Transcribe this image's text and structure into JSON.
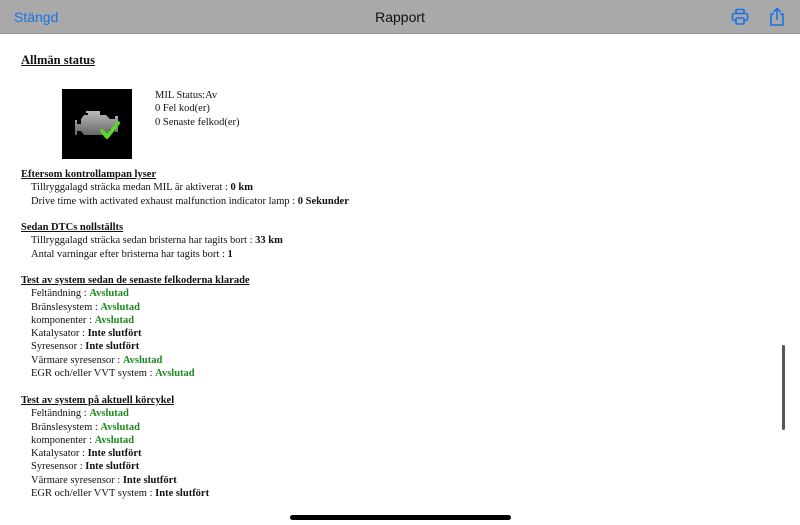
{
  "nav": {
    "close_label": "Stängd",
    "title": "Rapport",
    "print_icon": "printer-icon",
    "share_icon": "share-icon",
    "accent": "#1a73e8"
  },
  "general": {
    "title": "Allmän status",
    "icon": "engine-check-icon",
    "mil_status": "MIL Status:Av",
    "fault_codes": "0 Fel kod(er)",
    "recent_codes": "0 Senaste felkod(er)"
  },
  "mil_on": {
    "title": "Eftersom kontrollampan lyser",
    "items": [
      {
        "label": "Tillryggalagd sträcka medan MIL är aktiverat : ",
        "value": "0 km"
      },
      {
        "label": "Drive time with activated exhaust malfunction indicator lamp : ",
        "value": "0 Sekunder"
      }
    ]
  },
  "dtc_cleared": {
    "title": "Sedan DTCs nollställts",
    "items": [
      {
        "label": "Tillryggalagd sträcka sedan bristerna har tagits bort : ",
        "value": "33 km"
      },
      {
        "label": "Antal varningar efter bristerna har tagits bort : ",
        "value": "1"
      }
    ]
  },
  "test_since_clear": {
    "title": "Test av system sedan de senaste felkoderna klarade",
    "items": [
      {
        "label": "Feltändning : ",
        "value": "Avslutad",
        "status": "done"
      },
      {
        "label": "Bränslesystem : ",
        "value": "Avslutad",
        "status": "done"
      },
      {
        "label": "komponenter : ",
        "value": "Avslutad",
        "status": "done"
      },
      {
        "label": "Katalysator : ",
        "value": "Inte slutfört",
        "status": "incomplete"
      },
      {
        "label": "Syresensor : ",
        "value": "Inte slutfört",
        "status": "incomplete"
      },
      {
        "label": "Värmare syresensor : ",
        "value": "Avslutad",
        "status": "done"
      },
      {
        "label": "EGR och/eller VVT system : ",
        "value": "Avslutad",
        "status": "done"
      }
    ]
  },
  "test_current_cycle": {
    "title": "Test av system på aktuell körcykel",
    "items": [
      {
        "label": "Feltändning : ",
        "value": "Avslutad",
        "status": "done"
      },
      {
        "label": "Bränslesystem : ",
        "value": "Avslutad",
        "status": "done"
      },
      {
        "label": "komponenter : ",
        "value": "Avslutad",
        "status": "done"
      },
      {
        "label": "Katalysator : ",
        "value": "Inte slutfört",
        "status": "incomplete"
      },
      {
        "label": "Syresensor : ",
        "value": "Inte slutfört",
        "status": "incomplete"
      },
      {
        "label": "Värmare syresensor : ",
        "value": "Inte slutfört",
        "status": "incomplete"
      },
      {
        "label": "EGR och/eller VVT system : ",
        "value": "Inte slutfört",
        "status": "incomplete"
      }
    ]
  },
  "colors": {
    "done": "#1f8a1f",
    "incomplete": "#111111"
  }
}
